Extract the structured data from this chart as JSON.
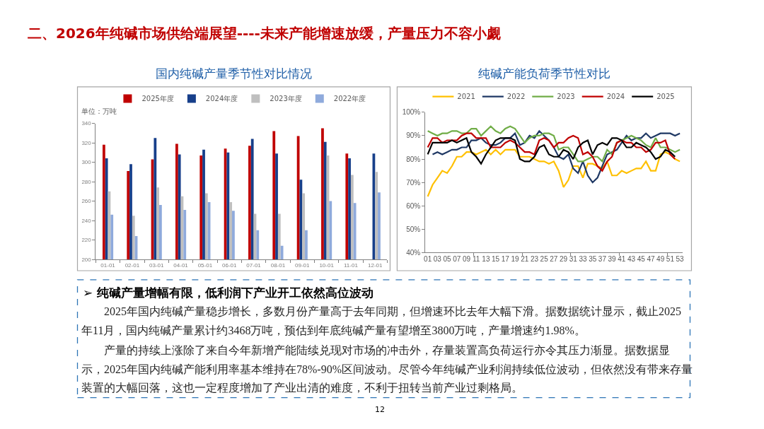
{
  "chart_data": [
    {
      "type": "other",
      "title": "二、2026年纯碱市场供给端展望----未来产能增速放缓，产量压力不容小觑",
      "annotations": [
        "12"
      ]
    },
    {
      "type": "bar",
      "title": "国内纯碱产量季节性对比情况",
      "ylabel": "单位：万吨",
      "categories": [
        "01-01",
        "02-01",
        "03-01",
        "04-01",
        "05-01",
        "06-01",
        "07-01",
        "08-01",
        "09-01",
        "10-01",
        "11-01",
        "12-01"
      ],
      "series": [
        {
          "name": "2025年度",
          "color": "#c00000",
          "values": [
            318,
            291,
            303,
            319,
            307,
            314,
            317,
            332,
            327,
            335,
            309,
            null
          ]
        },
        {
          "name": "2024年度",
          "color": "#173f8a",
          "values": [
            304,
            298,
            325,
            308,
            313,
            310,
            324,
            309,
            282,
            321,
            304,
            309
          ]
        },
        {
          "name": "2023年度",
          "color": "#bfbfbf",
          "values": [
            270,
            245,
            274,
            265,
            268,
            259,
            247,
            247,
            268,
            307,
            287,
            290
          ]
        },
        {
          "name": "2022年度",
          "color": "#8faadc",
          "values": [
            246,
            224,
            256,
            251,
            259,
            250,
            230,
            214,
            230,
            260,
            258,
            269
          ]
        }
      ],
      "ylim": [
        200,
        340
      ],
      "yticks": [
        200,
        220,
        240,
        260,
        280,
        300,
        320,
        340
      ],
      "legend": "top"
    },
    {
      "type": "line",
      "title": "纯碱产能负荷季节性对比",
      "x": [
        1,
        2,
        3,
        4,
        5,
        6,
        7,
        8,
        9,
        10,
        11,
        12,
        13,
        14,
        15,
        16,
        17,
        18,
        19,
        20,
        21,
        22,
        23,
        24,
        25,
        26,
        27,
        28,
        29,
        30,
        31,
        32,
        33,
        34,
        35,
        36,
        37,
        38,
        39,
        40,
        41,
        42,
        43,
        44,
        45,
        46,
        47,
        48,
        49,
        50,
        51,
        52,
        53
      ],
      "series": [
        {
          "name": "2021",
          "color": "#ffc000",
          "values": [
            64,
            69,
            72,
            75,
            74,
            77,
            81,
            81,
            83,
            83,
            82,
            83,
            84,
            82,
            84,
            82,
            84,
            84,
            84,
            81,
            81,
            81,
            80,
            79,
            79,
            78,
            79,
            75,
            68,
            71,
            77,
            77,
            72,
            78,
            78,
            77,
            76,
            79,
            73,
            73,
            75,
            74,
            75,
            76,
            76,
            79,
            75,
            75,
            82,
            83,
            82,
            80,
            79
          ]
        },
        {
          "name": "2022",
          "color": "#1f3864",
          "values": [
            null,
            82,
            83,
            82,
            83,
            84,
            84,
            85,
            85,
            88,
            88,
            89,
            87,
            86,
            86,
            87,
            89,
            89,
            91,
            86,
            87,
            90,
            89,
            92,
            90,
            88,
            85,
            81,
            80,
            82,
            76,
            74,
            79,
            73,
            70,
            72,
            77,
            82,
            83,
            84,
            87,
            90,
            88,
            89,
            89,
            91,
            89,
            90,
            91,
            91,
            91,
            90,
            91
          ]
        },
        {
          "name": "2023",
          "color": "#70ad47",
          "values": [
            92,
            91,
            90,
            91,
            91,
            92,
            92,
            91,
            91,
            93,
            93,
            90,
            92,
            94,
            92,
            91,
            93,
            94,
            93,
            90,
            87,
            89,
            90,
            90,
            91,
            91,
            90,
            84,
            85,
            85,
            82,
            79,
            79,
            80,
            81,
            81,
            79,
            84,
            82,
            87,
            88,
            89,
            90,
            89,
            88,
            86,
            85,
            89,
            85,
            85,
            84,
            83,
            84
          ]
        },
        {
          "name": "2024",
          "color": "#c00000",
          "values": [
            85,
            89,
            89,
            87,
            88,
            88,
            88,
            90,
            91,
            91,
            89,
            89,
            89,
            85,
            85,
            85,
            87,
            88,
            87,
            85,
            83,
            83,
            82,
            88,
            89,
            88,
            85,
            87,
            87,
            89,
            90,
            89,
            82,
            83,
            81,
            77,
            75,
            79,
            81,
            87,
            88,
            87,
            87,
            85,
            85,
            83,
            84,
            87,
            87,
            88,
            82,
            80,
            null
          ]
        },
        {
          "name": "2025",
          "color": "#000000",
          "values": [
            82,
            87,
            87,
            87,
            87,
            88,
            87,
            88,
            89,
            83,
            81,
            78,
            82,
            85,
            88,
            89,
            89,
            89,
            88,
            80,
            79,
            79,
            81,
            85,
            86,
            82,
            81,
            81,
            84,
            83,
            80,
            85,
            87,
            88,
            82,
            86,
            87,
            86,
            89,
            89,
            88,
            85,
            85,
            87,
            86,
            85,
            83,
            80,
            81,
            84,
            83,
            81,
            null
          ]
        }
      ],
      "xlim": [
        0.5,
        53.5
      ],
      "xticks": [
        {
          "value": 1,
          "label": "01"
        },
        {
          "value": 3,
          "label": "03"
        },
        {
          "value": 5,
          "label": "05"
        },
        {
          "value": 7,
          "label": "07"
        },
        {
          "value": 9,
          "label": "09"
        },
        {
          "value": 11,
          "label": "11"
        },
        {
          "value": 13,
          "label": "13"
        },
        {
          "value": 15,
          "label": "15"
        },
        {
          "value": 17,
          "label": "17"
        },
        {
          "value": 19,
          "label": "19"
        },
        {
          "value": 21,
          "label": "21"
        },
        {
          "value": 23,
          "label": "23"
        },
        {
          "value": 25,
          "label": "25"
        },
        {
          "value": 27,
          "label": "27"
        },
        {
          "value": 29,
          "label": "29"
        },
        {
          "value": 31,
          "label": "31"
        },
        {
          "value": 33,
          "label": "33"
        },
        {
          "value": 35,
          "label": "35"
        },
        {
          "value": 37,
          "label": "37"
        },
        {
          "value": 39,
          "label": "39"
        },
        {
          "value": 41,
          "label": "41"
        },
        {
          "value": 43,
          "label": "43"
        },
        {
          "value": 45,
          "label": "45"
        },
        {
          "value": 47,
          "label": "47"
        },
        {
          "value": 49,
          "label": "49"
        },
        {
          "value": 51,
          "label": "51"
        },
        {
          "value": 53,
          "label": "53"
        },
        {
          "value": 10.5,
          "label": null
        },
        {
          "value": 20.5,
          "label": null
        },
        {
          "value": 30.5,
          "label": null
        },
        {
          "value": 40.5,
          "label": null
        },
        {
          "value": 50.5,
          "label": null
        }
      ],
      "ylim": [
        40,
        100
      ],
      "yticks": [
        {
          "value": 40,
          "label": "40%"
        },
        {
          "value": 50,
          "label": "50%"
        },
        {
          "value": 60,
          "label": "60%"
        },
        {
          "value": 70,
          "label": "70%"
        },
        {
          "value": 80,
          "label": "80%"
        },
        {
          "value": 90,
          "label": "90%"
        },
        {
          "value": 100,
          "label": "100%"
        }
      ],
      "legend": "top"
    },
    {
      "type": "other",
      "title": "➢ 纯碱产量增幅有限，低利润下产业开工依然高位波动",
      "annotations": [
        "2025年国内纯碱产量稳步增长，多数月份产量高于去年同期，但增速环比去年大幅下滑。据数据统计显示，截止2025年11月，国内纯碱产量累计约3468万吨，预估到年底纯碱产量有望增至3800万吨，产量增速约1.98%。",
        "产量的持续上涨除了来自今年新增产能陆续兑现对市场的冲击外，存量装置高负荷运行亦令其压力渐显。据数据显示，2025年国内纯碱产能利用率基本维持在78%-90%区间波动。尽管今年纯碱产业利润持续低位波动，但依然没有带来存量装置的大幅回落，这也一定程度增加了产业出清的难度，不利于扭转当前产业过剩格局。"
      ]
    }
  ]
}
